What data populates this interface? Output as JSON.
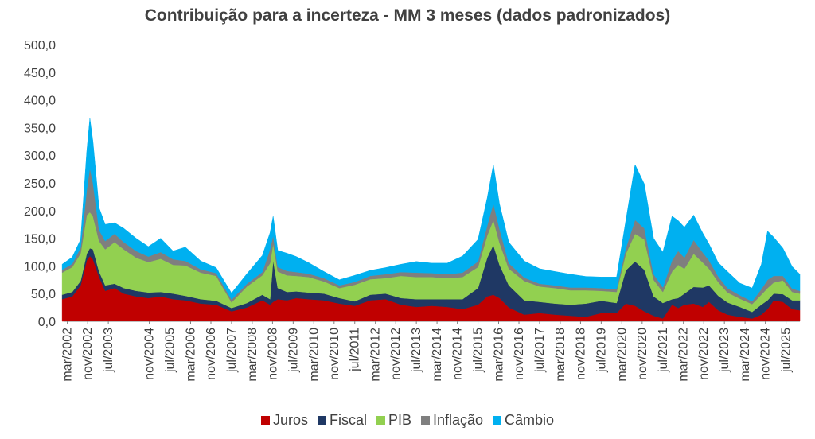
{
  "chart_data": {
    "type": "area",
    "stacked": true,
    "title": "Contribuição para a incerteza - MM 3 meses (dados padronizados)",
    "xlabel": "",
    "ylabel": "",
    "ylim": [
      0,
      500
    ],
    "yticks": [
      "0,0",
      "50,0",
      "100,0",
      "150,0",
      "200,0",
      "250,0",
      "300,0",
      "350,0",
      "400,0",
      "450,0",
      "500,0"
    ],
    "ytick_values": [
      0,
      50,
      100,
      150,
      200,
      250,
      300,
      350,
      400,
      450,
      500
    ],
    "x_tick_labels": [
      "mar/2002",
      "nov/2002",
      "jul/2003",
      "nov/2004",
      "jul/2005",
      "mar/2006",
      "nov/2006",
      "jul/2007",
      "mar/2008",
      "nov/2008",
      "jul/2009",
      "mar/2010",
      "nov/2010",
      "jul/2011",
      "mar/2012",
      "nov/2012",
      "jul/2013",
      "mar/2014",
      "nov/2014",
      "jul/2015",
      "mar/2016",
      "nov/2016",
      "jul/2017",
      "mar/2018",
      "nov/2018",
      "jul/2019",
      "mar/2020",
      "nov/2020",
      "jul/2021",
      "mar/2022",
      "nov/2022",
      "jul/2023",
      "mar/2024",
      "nov/2024",
      "jul/2025"
    ],
    "x_tick_dates": [
      2002.17,
      2002.83,
      2003.5,
      2004.83,
      2005.5,
      2006.17,
      2006.83,
      2007.5,
      2008.17,
      2008.83,
      2009.5,
      2010.17,
      2010.83,
      2011.5,
      2012.17,
      2012.83,
      2013.5,
      2014.17,
      2014.83,
      2015.5,
      2016.17,
      2016.83,
      2017.5,
      2018.17,
      2018.83,
      2019.5,
      2020.17,
      2020.83,
      2021.5,
      2022.17,
      2022.83,
      2023.5,
      2024.17,
      2024.83,
      2025.5
    ],
    "x_range": [
      2002.05,
      2025.95
    ],
    "dates": [
      2002.0,
      2002.33,
      2002.6,
      2002.8,
      2002.9,
      2003.0,
      2003.2,
      2003.4,
      2003.7,
      2004.0,
      2004.4,
      2004.8,
      2005.2,
      2005.6,
      2006.0,
      2006.5,
      2007.0,
      2007.5,
      2008.0,
      2008.5,
      2008.75,
      2008.85,
      2009.0,
      2009.3,
      2009.6,
      2010.0,
      2010.5,
      2011.0,
      2011.5,
      2012.0,
      2012.5,
      2013.0,
      2013.5,
      2014.0,
      2014.5,
      2015.0,
      2015.5,
      2015.8,
      2016.0,
      2016.2,
      2016.5,
      2017.0,
      2017.5,
      2018.0,
      2018.5,
      2019.0,
      2019.5,
      2020.0,
      2020.3,
      2020.6,
      2020.9,
      2021.2,
      2021.5,
      2021.8,
      2022.0,
      2022.2,
      2022.5,
      2022.8,
      2023.0,
      2023.3,
      2023.6,
      2024.0,
      2024.4,
      2024.7,
      2024.9,
      2025.1,
      2025.4,
      2025.7,
      2025.95
    ],
    "series": [
      {
        "name": "Juros",
        "color": "#c00000",
        "values": [
          40,
          45,
          65,
          110,
          118,
          112,
          80,
          55,
          60,
          50,
          45,
          42,
          45,
          40,
          38,
          32,
          30,
          18,
          25,
          38,
          30,
          35,
          40,
          38,
          42,
          40,
          38,
          32,
          28,
          38,
          40,
          30,
          26,
          28,
          26,
          22,
          30,
          45,
          48,
          42,
          25,
          12,
          15,
          12,
          10,
          8,
          15,
          15,
          32,
          28,
          18,
          10,
          5,
          30,
          24,
          30,
          32,
          26,
          35,
          20,
          12,
          8,
          5,
          12,
          22,
          38,
          35,
          22,
          20
        ]
      },
      {
        "name": "Fiscal",
        "color": "#1f3864",
        "values": [
          8,
          8,
          8,
          12,
          14,
          18,
          10,
          10,
          8,
          10,
          10,
          10,
          8,
          10,
          8,
          8,
          7,
          6,
          8,
          10,
          10,
          75,
          20,
          15,
          12,
          12,
          12,
          10,
          8,
          10,
          10,
          12,
          14,
          12,
          14,
          18,
          30,
          70,
          90,
          60,
          40,
          26,
          20,
          20,
          20,
          24,
          22,
          18,
          60,
          80,
          75,
          35,
          28,
          10,
          18,
          20,
          30,
          35,
          30,
          26,
          22,
          18,
          12,
          18,
          16,
          12,
          14,
          16,
          18
        ]
      },
      {
        "name": "PIB",
        "color": "#92d050",
        "values": [
          40,
          45,
          50,
          70,
          65,
          60,
          55,
          65,
          75,
          70,
          60,
          55,
          60,
          52,
          55,
          48,
          45,
          10,
          30,
          35,
          65,
          30,
          30,
          30,
          28,
          28,
          22,
          18,
          30,
          28,
          28,
          40,
          40,
          40,
          38,
          40,
          38,
          40,
          45,
          40,
          30,
          35,
          28,
          28,
          26,
          24,
          18,
          20,
          30,
          50,
          55,
          30,
          20,
          50,
          60,
          45,
          60,
          45,
          30,
          25,
          18,
          15,
          14,
          18,
          22,
          20,
          25,
          15,
          12
        ]
      },
      {
        "name": "Inflação",
        "color": "#7f7f7f",
        "values": [
          5,
          6,
          10,
          45,
          80,
          60,
          20,
          15,
          15,
          13,
          12,
          10,
          12,
          10,
          8,
          6,
          5,
          5,
          5,
          6,
          25,
          15,
          8,
          8,
          7,
          6,
          6,
          5,
          5,
          6,
          7,
          7,
          8,
          7,
          7,
          8,
          10,
          18,
          30,
          25,
          10,
          6,
          5,
          5,
          5,
          5,
          5,
          5,
          10,
          25,
          20,
          10,
          8,
          20,
          25,
          20,
          25,
          18,
          15,
          10,
          8,
          6,
          5,
          10,
          15,
          12,
          8,
          6,
          5
        ]
      },
      {
        "name": "Câmbio",
        "color": "#00b0f0",
        "values": [
          10,
          12,
          15,
          70,
          90,
          75,
          40,
          30,
          20,
          25,
          23,
          18,
          25,
          15,
          25,
          15,
          10,
          12,
          18,
          30,
          30,
          35,
          30,
          32,
          28,
          20,
          12,
          10,
          12,
          10,
          12,
          14,
          20,
          18,
          20,
          30,
          40,
          50,
          70,
          45,
          38,
          30,
          27,
          25,
          24,
          20,
          20,
          22,
          50,
          100,
          80,
          65,
          64,
          80,
          55,
          55,
          45,
          35,
          30,
          25,
          30,
          22,
          24,
          45,
          88,
          70,
          50,
          40,
          30
        ]
      }
    ]
  }
}
